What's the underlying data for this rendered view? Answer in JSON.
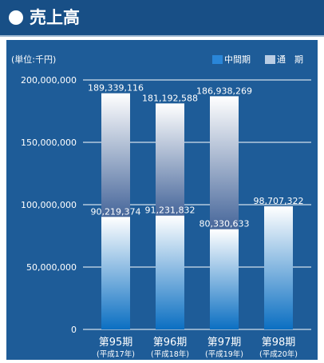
{
  "header": {
    "title": "売上高"
  },
  "chart_data": {
    "type": "bar",
    "unit_label": "(単位:千円)",
    "categories": [
      "第95期",
      "第96期",
      "第97期",
      "第98期"
    ],
    "category_sublabels": [
      "(平成17年)",
      "(平成18年)",
      "(平成19年)",
      "(平成20年)"
    ],
    "series": [
      {
        "name": "中間期",
        "values": [
          90219374,
          91231832,
          80330633,
          98707322
        ]
      },
      {
        "name": "通　期",
        "values": [
          189339116,
          181192588,
          186938269,
          null
        ]
      }
    ],
    "value_labels": [
      [
        "90,219,374",
        "91,231,832",
        "80,330,633",
        "98,707,322"
      ],
      [
        "189,339,116",
        "181,192,588",
        "186,938,269",
        null
      ]
    ],
    "y_ticks": [
      0,
      50000000,
      100000000,
      150000000,
      200000000
    ],
    "y_tick_labels": [
      "0",
      "50,000,000",
      "100,000,000",
      "150,000,000",
      "200,000,000"
    ],
    "ylim": [
      0,
      200000000
    ],
    "grid": true,
    "legend_position": "top-right",
    "colors": {
      "panel": "#1e5c98",
      "header": "#184f86",
      "bar_bottom": "#0b6fc2",
      "bar_top": "#ffffff",
      "full_bottom": "#46669a",
      "grid": "#ffffff"
    }
  }
}
